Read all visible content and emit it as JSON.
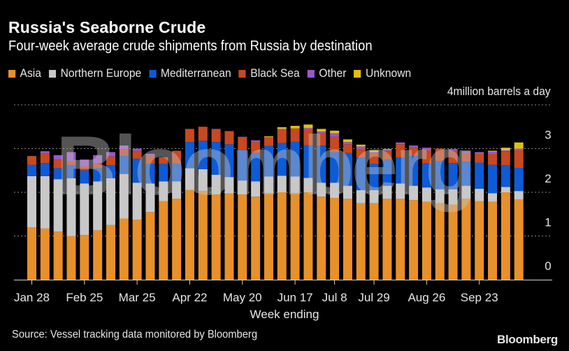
{
  "header": {
    "title": "Russia's Seaborne Crude",
    "subtitle": "Four-week average crude shipments from Russia by destination"
  },
  "legend": [
    {
      "label": "Asia",
      "color": "#e8902a"
    },
    {
      "label": "Northern Europe",
      "color": "#c8c8c8"
    },
    {
      "label": "Mediterranean",
      "color": "#0d5bd6"
    },
    {
      "label": "Black Sea",
      "color": "#c8491f"
    },
    {
      "label": "Other",
      "color": "#9a57c9"
    },
    {
      "label": "Unknown",
      "color": "#e0c00e"
    }
  ],
  "unit_label": "4million barrels a day",
  "xlabel": "Week ending",
  "source": "Source: Vessel tracking data monitored by Bloomberg",
  "brand": "Bloomberg",
  "watermark": "Bloomberg",
  "chart_data": {
    "type": "bar",
    "stacked": true,
    "title": "Russia's Seaborne Crude",
    "subtitle": "Four-week average crude shipments from Russia by destination",
    "xlabel": "Week ending",
    "ylabel": "million barrels a day",
    "ylim": [
      0,
      4
    ],
    "yticks": [
      0,
      1,
      2,
      3,
      4
    ],
    "grid": true,
    "legend_position": "top-left",
    "xtick_labels": [
      {
        "index": 0,
        "label": "Jan 28"
      },
      {
        "index": 4,
        "label": "Feb 25"
      },
      {
        "index": 8,
        "label": "Mar 25"
      },
      {
        "index": 12,
        "label": "Apr 22"
      },
      {
        "index": 16,
        "label": "May 20"
      },
      {
        "index": 20,
        "label": "Jun 17"
      },
      {
        "index": 23,
        "label": "Jul 8"
      },
      {
        "index": 26,
        "label": "Jul 29"
      },
      {
        "index": 30,
        "label": "Aug 26"
      },
      {
        "index": 34,
        "label": "Sep 23"
      }
    ],
    "categories": [
      "Jan 28",
      "Feb 4",
      "Feb 11",
      "Feb 18",
      "Feb 25",
      "Mar 4",
      "Mar 11",
      "Mar 18",
      "Mar 25",
      "Apr 1",
      "Apr 8",
      "Apr 15",
      "Apr 22",
      "Apr 29",
      "May 6",
      "May 13",
      "May 20",
      "May 27",
      "Jun 3",
      "Jun 10",
      "Jun 17",
      "Jun 24",
      "Jul 1",
      "Jul 8",
      "Jul 15",
      "Jul 22",
      "Jul 29",
      "Aug 5",
      "Aug 12",
      "Aug 19",
      "Aug 26",
      "Sep 2",
      "Sep 9",
      "Sep 16",
      "Sep 23",
      "Sep 30",
      "Oct 7",
      "Oct 14"
    ],
    "series": [
      {
        "name": "Asia",
        "values": [
          1.2,
          1.17,
          1.1,
          1.0,
          1.02,
          1.13,
          1.25,
          1.4,
          1.37,
          1.55,
          1.8,
          1.85,
          2.05,
          2.03,
          1.95,
          1.97,
          1.95,
          1.9,
          1.98,
          2.0,
          1.98,
          2.0,
          1.9,
          1.87,
          1.85,
          1.75,
          1.75,
          1.85,
          1.85,
          1.82,
          1.78,
          1.75,
          1.72,
          1.85,
          1.8,
          1.78,
          2.0,
          1.84
        ]
      },
      {
        "name": "Northern Europe",
        "values": [
          1.17,
          1.2,
          1.2,
          1.32,
          1.18,
          1.12,
          1.07,
          1.02,
          0.85,
          0.65,
          0.45,
          0.4,
          0.5,
          0.5,
          0.45,
          0.38,
          0.32,
          0.35,
          0.38,
          0.38,
          0.38,
          0.33,
          0.32,
          0.35,
          0.3,
          0.3,
          0.3,
          0.3,
          0.35,
          0.33,
          0.33,
          0.32,
          0.35,
          0.3,
          0.28,
          0.2,
          0.12,
          0.19
        ]
      },
      {
        "name": "Mediterranean",
        "values": [
          0.26,
          0.3,
          0.25,
          0.3,
          0.3,
          0.3,
          0.3,
          0.42,
          0.55,
          0.45,
          0.4,
          0.4,
          0.6,
          0.65,
          0.75,
          0.75,
          0.7,
          0.65,
          0.7,
          0.75,
          0.8,
          0.75,
          0.85,
          0.7,
          0.75,
          0.75,
          0.6,
          0.6,
          0.6,
          0.68,
          0.55,
          0.65,
          0.6,
          0.55,
          0.6,
          0.65,
          0.5,
          0.53
        ]
      },
      {
        "name": "Black Sea",
        "values": [
          0.2,
          0.22,
          0.2,
          0.1,
          0.1,
          0.12,
          0.2,
          0.15,
          0.18,
          0.2,
          0.15,
          0.3,
          0.3,
          0.32,
          0.28,
          0.3,
          0.28,
          0.25,
          0.2,
          0.3,
          0.3,
          0.35,
          0.28,
          0.35,
          0.2,
          0.2,
          0.25,
          0.2,
          0.3,
          0.2,
          0.3,
          0.28,
          0.28,
          0.2,
          0.2,
          0.25,
          0.32,
          0.4
        ]
      },
      {
        "name": "Other",
        "values": [
          0,
          0.05,
          0.1,
          0.2,
          0.15,
          0.18,
          0.1,
          0.08,
          0.05,
          0.03,
          0,
          0,
          0,
          0,
          0.02,
          0,
          0.02,
          0.04,
          0,
          0.02,
          0,
          0.04,
          0.04,
          0.08,
          0.05,
          0.05,
          0.02,
          0.02,
          0.04,
          0.04,
          0.06,
          0,
          0.04,
          0.04,
          0.04,
          0.05,
          0.02,
          0.04
        ]
      },
      {
        "name": "Unknown",
        "values": [
          0,
          0,
          0,
          0,
          0,
          0,
          0,
          0,
          0,
          0,
          0,
          0,
          0,
          0,
          0,
          0,
          0,
          0,
          0.02,
          0.04,
          0.06,
          0.08,
          0.06,
          0.06,
          0.06,
          0.04,
          0.04,
          0.02,
          0,
          0,
          0,
          0,
          0,
          0,
          0,
          0.02,
          0.06,
          0.14
        ]
      }
    ]
  }
}
